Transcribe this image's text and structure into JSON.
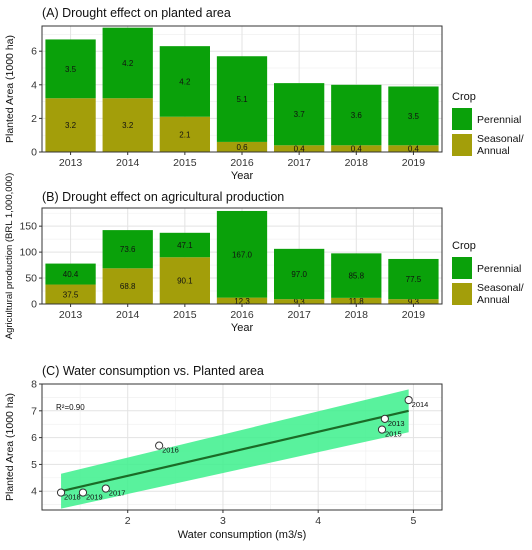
{
  "colors": {
    "perennial": "#0aa10a",
    "seasonal": "#a39e0a",
    "regression_line": "#1b6b27",
    "confidence_band": "#3cf08c",
    "panel_bg": "#ffffff",
    "grid": "#e3e3e3"
  },
  "chart_data": [
    {
      "type": "bar",
      "stacked": true,
      "title": "(A) Drought effect on planted area",
      "xlabel": "Year",
      "ylabel": "Planted Area (1000 ha)",
      "categories": [
        "2013",
        "2014",
        "2015",
        "2016",
        "2017",
        "2018",
        "2019"
      ],
      "series": [
        {
          "name": "Seasonal/ Annual",
          "values": [
            3.2,
            3.2,
            2.1,
            0.6,
            0.4,
            0.4,
            0.4
          ],
          "labels": [
            "3.2",
            "3.2",
            "2.1",
            "0.6",
            "0.4",
            "0.4",
            "0.4"
          ]
        },
        {
          "name": "Perennial",
          "values": [
            3.5,
            4.2,
            4.2,
            5.1,
            3.7,
            3.6,
            3.5
          ],
          "labels": [
            "3.5",
            "4.2",
            "4.2",
            "5.1",
            "3.7",
            "3.6",
            "3.5"
          ]
        }
      ],
      "ylim": [
        0,
        7.5
      ],
      "yticks": [
        "0",
        "2",
        "4",
        "6"
      ],
      "grid": true,
      "legend": {
        "title": "Crop",
        "position": "right"
      }
    },
    {
      "type": "bar",
      "stacked": true,
      "title": "(B) Drought effect on agricultural production",
      "xlabel": "Year",
      "ylabel": "Agricultural production (BRL 1,000,000)",
      "categories": [
        "2013",
        "2014",
        "2015",
        "2016",
        "2017",
        "2018",
        "2019"
      ],
      "series": [
        {
          "name": "Seasonal/ Annual",
          "values": [
            37.5,
            68.8,
            90.1,
            12.3,
            9.3,
            11.8,
            9.3
          ],
          "labels": [
            "37.5",
            "68.8",
            "90.1",
            "12.3",
            "9.3",
            "11.8",
            "9.3"
          ]
        },
        {
          "name": "Perennial",
          "values": [
            40.4,
            73.6,
            47.1,
            167.0,
            97.0,
            85.8,
            77.5
          ],
          "labels": [
            "40.4",
            "73.6",
            "47.1",
            "167.0",
            "97.0",
            "85.8",
            "77.5"
          ]
        }
      ],
      "ylim": [
        0,
        185
      ],
      "yticks": [
        "0",
        "50",
        "100",
        "150"
      ],
      "grid": true,
      "legend": {
        "title": "Crop",
        "position": "right"
      }
    },
    {
      "type": "scatter",
      "title": "(C) Water consumption vs. Planted area",
      "xlabel": "Water consumption (m3/s)",
      "ylabel": "Planted Area (1000 ha)",
      "annotation": "R²=0.90",
      "points": [
        {
          "x": 4.7,
          "y": 6.7,
          "label": "2013"
        },
        {
          "x": 4.95,
          "y": 7.4,
          "label": "2014"
        },
        {
          "x": 4.67,
          "y": 6.3,
          "label": "2015"
        },
        {
          "x": 2.33,
          "y": 5.7,
          "label": "2016"
        },
        {
          "x": 1.77,
          "y": 4.1,
          "label": "2017"
        },
        {
          "x": 1.3,
          "y": 3.95,
          "label": "2018"
        },
        {
          "x": 1.53,
          "y": 3.95,
          "label": "2019"
        }
      ],
      "regression": {
        "x": [
          1.3,
          4.95
        ],
        "y": [
          4.0,
          7.0
        ],
        "band_halfwidth": [
          0.65,
          0.8
        ]
      },
      "xlim": [
        1.1,
        5.3
      ],
      "ylim": [
        3.3,
        8.0
      ],
      "xticks": [
        "2",
        "3",
        "4",
        "5"
      ],
      "yticks": [
        "4",
        "5",
        "6",
        "7",
        "8"
      ],
      "grid": true
    }
  ]
}
